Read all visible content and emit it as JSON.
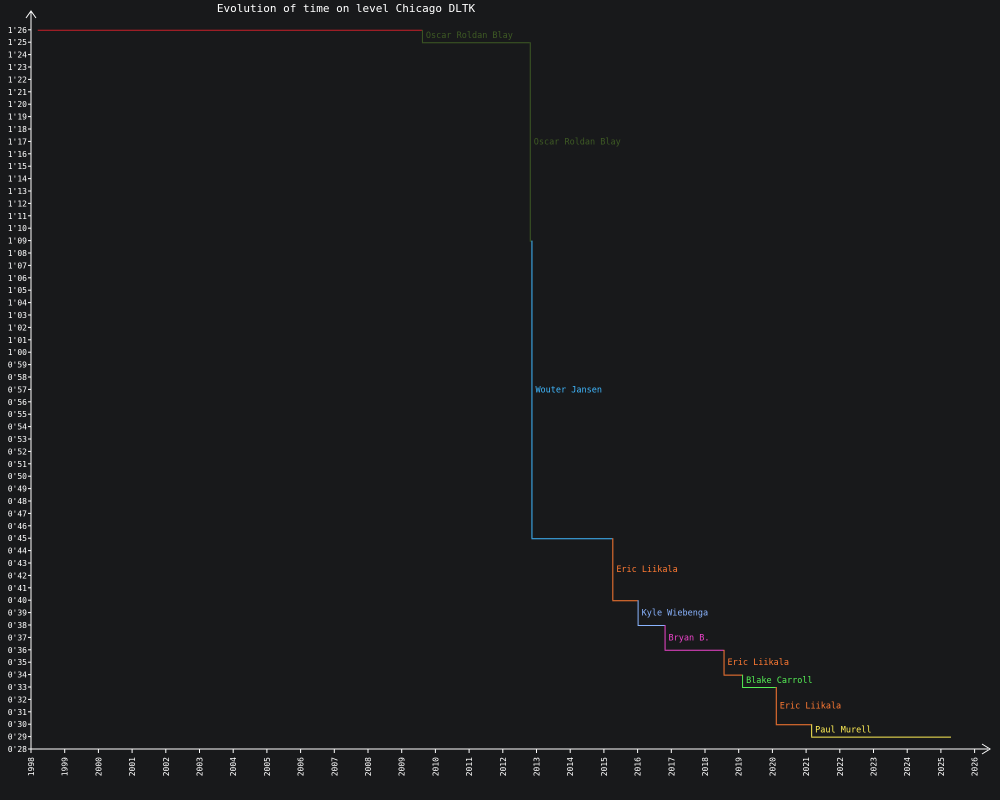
{
  "chart_data": {
    "type": "line",
    "title": "Evolution of time on level Chicago DLTK",
    "xlabel": "",
    "ylabel": "",
    "x_ticks": [
      "1998",
      "1999",
      "2000",
      "2001",
      "2002",
      "2003",
      "2004",
      "2005",
      "2006",
      "2007",
      "2008",
      "2009",
      "2010",
      "2011",
      "2012",
      "2013",
      "2014",
      "2015",
      "2016",
      "2017",
      "2018",
      "2019",
      "2020",
      "2021",
      "2022",
      "2023",
      "2024",
      "2025",
      "2026"
    ],
    "y_ticks": [
      "0'28",
      "0'29",
      "0'30",
      "0'31",
      "0'32",
      "0'33",
      "0'34",
      "0'35",
      "0'36",
      "0'37",
      "0'38",
      "0'39",
      "0'40",
      "0'41",
      "0'42",
      "0'43",
      "0'44",
      "0'45",
      "0'46",
      "0'47",
      "0'48",
      "0'49",
      "0'50",
      "0'51",
      "0'52",
      "0'53",
      "0'54",
      "0'55",
      "0'56",
      "0'57",
      "0'58",
      "0'59",
      "1'00",
      "1'01",
      "1'02",
      "1'03",
      "1'04",
      "1'05",
      "1'06",
      "1'07",
      "1'08",
      "1'09",
      "1'10",
      "1'11",
      "1'12",
      "1'13",
      "1'14",
      "1'15",
      "1'16",
      "1'17",
      "1'18",
      "1'19",
      "1'20",
      "1'21",
      "1'22",
      "1'23",
      "1'24",
      "1'25",
      "1'26"
    ],
    "ylim": [
      28,
      86
    ],
    "grid": false,
    "records": [
      {
        "player": "",
        "start": 1998.2,
        "end": 2009.6,
        "time": 86,
        "color": "#c8202a"
      },
      {
        "player": "Oscar Roldan Blay",
        "start": 2009.6,
        "end": 2012.8,
        "time": 85,
        "color": "#3e5a24"
      },
      {
        "player": "Oscar Roldan Blay",
        "start": 2012.8,
        "end": 2012.85,
        "time": 69,
        "color": "#3e5a24"
      },
      {
        "player": "Wouter Jansen",
        "start": 2012.85,
        "end": 2015.25,
        "time": 45,
        "color": "#40b8ff"
      },
      {
        "player": "Eric Liikala",
        "start": 2015.25,
        "end": 2016.0,
        "time": 40,
        "color": "#ff7a33"
      },
      {
        "player": "Kyle Wiebenga",
        "start": 2016.0,
        "end": 2016.8,
        "time": 38,
        "color": "#8ab4ff"
      },
      {
        "player": "Bryan B.",
        "start": 2016.8,
        "end": 2018.55,
        "time": 36,
        "color": "#ee44cc"
      },
      {
        "player": "Eric Liikala",
        "start": 2018.55,
        "end": 2019.1,
        "time": 34,
        "color": "#ff7a33"
      },
      {
        "player": "Blake Carroll",
        "start": 2019.1,
        "end": 2020.1,
        "time": 33,
        "color": "#55ee55"
      },
      {
        "player": "Eric Liikala",
        "start": 2020.1,
        "end": 2021.15,
        "time": 30,
        "color": "#ff7a33"
      },
      {
        "player": "Paul Murell",
        "start": 2021.15,
        "end": 2025.3,
        "time": 29,
        "color": "#ffee55"
      }
    ]
  }
}
